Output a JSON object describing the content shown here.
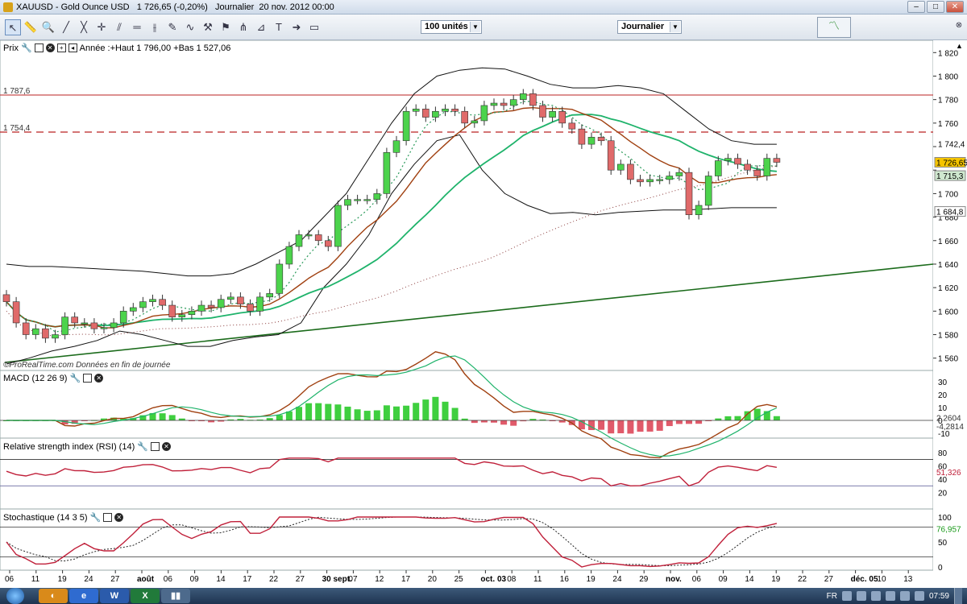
{
  "window": {
    "title": "XAUUSD - Gold Ounce USD   1 726,65 (-0,20%)   Journalier  20 nov. 2012 00:00",
    "min": "–",
    "max": "□",
    "close": "✕"
  },
  "toolbar": {
    "icons": [
      "pointer-icon",
      "ruler-icon",
      "zoom-icon",
      "line-icon",
      "fib-icon",
      "crosshair-icon",
      "channel-icon",
      "hline-icon",
      "vline-icon",
      "tools-icon",
      "wave-icon",
      "trend-icon",
      "text-icon",
      "arrow-icon",
      "rect-icon"
    ],
    "units": "100 unités",
    "period": "Journalier"
  },
  "panels": {
    "price": {
      "label": "Prix",
      "info": "Année :+Haut 1 796,00 +Bas 1 527,06",
      "h1": "1 787,6",
      "h2": "1 754,4",
      "credit": "©ProRealTime.com  Données en fin de journée"
    },
    "macd": {
      "label": "MACD (12 26 9)",
      "v1": "2,2604",
      "v2": "-4,2814"
    },
    "rsi": {
      "label": "Relative strength index (RSI) (14)",
      "v": "51,326"
    },
    "stoch": {
      "label": "Stochastique (14 3 5)",
      "v": "76,957"
    }
  },
  "axis": {
    "price": [
      "1 820",
      "1 800",
      "1 780",
      "1 760",
      "1 742,4",
      "1 700",
      "1 680",
      "1 660",
      "1 640",
      "1 620",
      "1 600",
      "1 580",
      "1 560"
    ],
    "price_markers": {
      "last": "1 726,65",
      "ma": "1 715,3",
      "low": "1 684,8"
    },
    "macd": [
      "30",
      "20",
      "10",
      "0",
      "-10"
    ],
    "rsi": [
      "80",
      "60",
      "40",
      "20"
    ],
    "stoch": [
      "100",
      "50",
      "0"
    ],
    "dates": [
      "06",
      "11",
      "19",
      "24",
      "27",
      "août",
      "06",
      "09",
      "14",
      "17",
      "22",
      "27",
      "30 sept.",
      "07",
      "12",
      "17",
      "20",
      "25",
      "oct. 03",
      "08",
      "11",
      "16",
      "19",
      "24",
      "29",
      "nov.",
      "06",
      "09",
      "14",
      "19",
      "22",
      "27",
      "déc. 05",
      "10",
      "13"
    ]
  },
  "chart_data": {
    "type": "line",
    "title": "XAUUSD - Gold Ounce USD",
    "frequency": "Journalier",
    "yrange": [
      1555,
      1825
    ],
    "close": [
      1608,
      1590,
      1580,
      1585,
      1577,
      1580,
      1595,
      1590,
      1590,
      1585,
      1586,
      1590,
      1600,
      1603,
      1608,
      1610,
      1605,
      1595,
      1597,
      1600,
      1605,
      1603,
      1610,
      1612,
      1606,
      1600,
      1612,
      1615,
      1640,
      1655,
      1665,
      1665,
      1660,
      1655,
      1690,
      1695,
      1695,
      1695,
      1700,
      1735,
      1745,
      1770,
      1772,
      1765,
      1770,
      1772,
      1770,
      1760,
      1762,
      1775,
      1777,
      1775,
      1780,
      1785,
      1775,
      1765,
      1770,
      1760,
      1755,
      1742,
      1748,
      1745,
      1720,
      1725,
      1712,
      1710,
      1712,
      1712,
      1715,
      1718,
      1682,
      1690,
      1715,
      1728,
      1730,
      1725,
      1720,
      1715,
      1730,
      1726.65
    ],
    "bollinger_upper": [
      1640,
      1638,
      1638,
      1637,
      1636,
      1635,
      1634,
      1632,
      1630,
      1630,
      1632,
      1640,
      1650,
      1660,
      1680,
      1700,
      1730,
      1760,
      1785,
      1800,
      1805,
      1807,
      1806,
      1800,
      1793,
      1790,
      1790,
      1792,
      1790,
      1785,
      1770,
      1755,
      1745,
      1742,
      1742
    ],
    "bollinger_lower": [
      1555,
      1560,
      1566,
      1570,
      1575,
      1583,
      1580,
      1575,
      1570,
      1570,
      1575,
      1578,
      1580,
      1590,
      1620,
      1640,
      1665,
      1700,
      1725,
      1745,
      1750,
      1720,
      1700,
      1690,
      1683,
      1684,
      1682,
      1684,
      1685,
      1686,
      1686,
      1687,
      1688,
      1688,
      1688
    ],
    "yaxis_ticks": [
      1560,
      1580,
      1600,
      1620,
      1640,
      1660,
      1680,
      1700,
      1720,
      1740,
      1760,
      1780,
      1800,
      1820
    ],
    "levels": {
      "resistance_1": 1787.6,
      "resistance_2": 1754.4
    }
  }
}
